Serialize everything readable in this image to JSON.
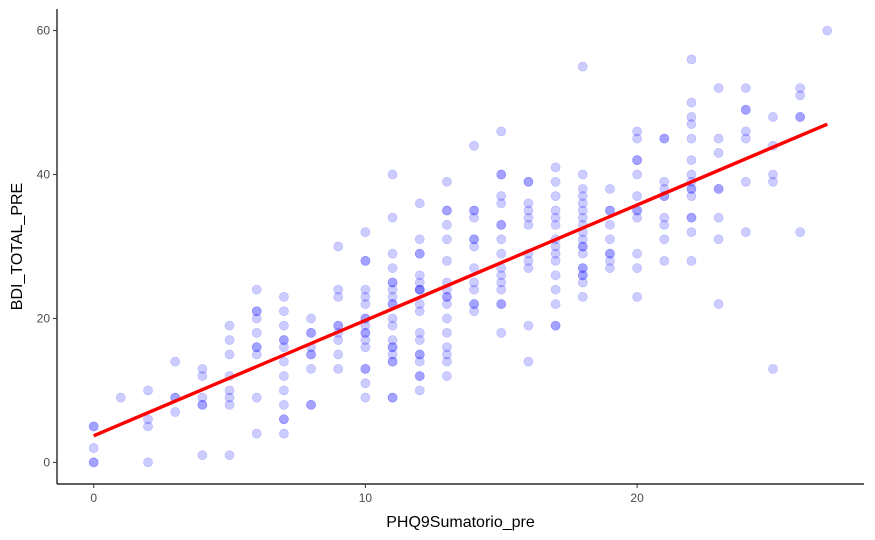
{
  "chart_data": {
    "type": "scatter",
    "title": "",
    "xlabel": "PHQ9Sumatorio_pre",
    "ylabel": "BDI_TOTAL_PRE",
    "xlim": [
      -1.35,
      28.35
    ],
    "ylim": [
      -3,
      63
    ],
    "x_ticks": [
      0,
      10,
      20
    ],
    "y_ticks": [
      0,
      20,
      40,
      60
    ],
    "grid": false,
    "legend": "none",
    "point_color": "#0000ff",
    "point_opacity": 0.2,
    "fit_line": {
      "color": "#ff0000",
      "x": [
        0,
        27
      ],
      "y": [
        3.7,
        47
      ]
    },
    "points": [
      [
        0,
        5
      ],
      [
        0,
        5
      ],
      [
        0,
        2
      ],
      [
        0,
        0
      ],
      [
        0,
        0
      ],
      [
        1,
        9
      ],
      [
        2,
        10
      ],
      [
        2,
        6
      ],
      [
        2,
        5
      ],
      [
        2,
        0
      ],
      [
        3,
        14
      ],
      [
        3,
        9
      ],
      [
        3,
        9
      ],
      [
        3,
        7
      ],
      [
        4,
        13
      ],
      [
        4,
        12
      ],
      [
        4,
        9
      ],
      [
        4,
        8
      ],
      [
        4,
        8
      ],
      [
        4,
        1
      ],
      [
        5,
        19
      ],
      [
        5,
        17
      ],
      [
        5,
        15
      ],
      [
        5,
        12
      ],
      [
        5,
        10
      ],
      [
        5,
        9
      ],
      [
        5,
        8
      ],
      [
        5,
        1
      ],
      [
        6,
        24
      ],
      [
        6,
        21
      ],
      [
        6,
        21
      ],
      [
        6,
        20
      ],
      [
        6,
        18
      ],
      [
        6,
        16
      ],
      [
        6,
        16
      ],
      [
        6,
        15
      ],
      [
        6,
        9
      ],
      [
        6,
        4
      ],
      [
        7,
        23
      ],
      [
        7,
        21
      ],
      [
        7,
        19
      ],
      [
        7,
        17
      ],
      [
        7,
        17
      ],
      [
        7,
        16
      ],
      [
        7,
        14
      ],
      [
        7,
        12
      ],
      [
        7,
        10
      ],
      [
        7,
        8
      ],
      [
        7,
        6
      ],
      [
        7,
        6
      ],
      [
        7,
        4
      ],
      [
        8,
        20
      ],
      [
        8,
        18
      ],
      [
        8,
        18
      ],
      [
        8,
        16
      ],
      [
        8,
        15
      ],
      [
        8,
        15
      ],
      [
        8,
        13
      ],
      [
        8,
        8
      ],
      [
        8,
        8
      ],
      [
        9,
        30
      ],
      [
        9,
        24
      ],
      [
        9,
        23
      ],
      [
        9,
        19
      ],
      [
        9,
        19
      ],
      [
        9,
        18
      ],
      [
        9,
        17
      ],
      [
        9,
        15
      ],
      [
        9,
        13
      ],
      [
        10,
        32
      ],
      [
        10,
        28
      ],
      [
        10,
        28
      ],
      [
        10,
        24
      ],
      [
        10,
        23
      ],
      [
        10,
        22
      ],
      [
        10,
        20
      ],
      [
        10,
        20
      ],
      [
        10,
        19
      ],
      [
        10,
        18
      ],
      [
        10,
        18
      ],
      [
        10,
        17
      ],
      [
        10,
        16
      ],
      [
        10,
        13
      ],
      [
        10,
        13
      ],
      [
        10,
        11
      ],
      [
        10,
        9
      ],
      [
        11,
        40
      ],
      [
        11,
        34
      ],
      [
        11,
        29
      ],
      [
        11,
        27
      ],
      [
        11,
        25
      ],
      [
        11,
        25
      ],
      [
        11,
        24
      ],
      [
        11,
        23
      ],
      [
        11,
        22
      ],
      [
        11,
        22
      ],
      [
        11,
        20
      ],
      [
        11,
        19
      ],
      [
        11,
        17
      ],
      [
        11,
        16
      ],
      [
        11,
        16
      ],
      [
        11,
        15
      ],
      [
        11,
        14
      ],
      [
        11,
        14
      ],
      [
        11,
        9
      ],
      [
        11,
        9
      ],
      [
        12,
        36
      ],
      [
        12,
        31
      ],
      [
        12,
        29
      ],
      [
        12,
        29
      ],
      [
        12,
        26
      ],
      [
        12,
        25
      ],
      [
        12,
        24
      ],
      [
        12,
        24
      ],
      [
        12,
        24
      ],
      [
        12,
        22
      ],
      [
        12,
        21
      ],
      [
        12,
        18
      ],
      [
        12,
        17
      ],
      [
        12,
        15
      ],
      [
        12,
        15
      ],
      [
        12,
        14
      ],
      [
        12,
        12
      ],
      [
        12,
        12
      ],
      [
        12,
        10
      ],
      [
        13,
        39
      ],
      [
        13,
        35
      ],
      [
        13,
        35
      ],
      [
        13,
        33
      ],
      [
        13,
        31
      ],
      [
        13,
        28
      ],
      [
        13,
        25
      ],
      [
        13,
        24
      ],
      [
        13,
        23
      ],
      [
        13,
        23
      ],
      [
        13,
        22
      ],
      [
        13,
        20
      ],
      [
        13,
        18
      ],
      [
        13,
        16
      ],
      [
        13,
        15
      ],
      [
        13,
        14
      ],
      [
        13,
        12
      ],
      [
        14,
        44
      ],
      [
        14,
        35
      ],
      [
        14,
        35
      ],
      [
        14,
        34
      ],
      [
        14,
        31
      ],
      [
        14,
        31
      ],
      [
        14,
        30
      ],
      [
        14,
        27
      ],
      [
        14,
        25
      ],
      [
        14,
        24
      ],
      [
        14,
        22
      ],
      [
        14,
        22
      ],
      [
        14,
        21
      ],
      [
        15,
        46
      ],
      [
        15,
        40
      ],
      [
        15,
        40
      ],
      [
        15,
        37
      ],
      [
        15,
        36
      ],
      [
        15,
        33
      ],
      [
        15,
        33
      ],
      [
        15,
        31
      ],
      [
        15,
        29
      ],
      [
        15,
        27
      ],
      [
        15,
        26
      ],
      [
        15,
        25
      ],
      [
        15,
        24
      ],
      [
        15,
        22
      ],
      [
        15,
        22
      ],
      [
        15,
        18
      ],
      [
        16,
        39
      ],
      [
        16,
        39
      ],
      [
        16,
        36
      ],
      [
        16,
        35
      ],
      [
        16,
        34
      ],
      [
        16,
        33
      ],
      [
        16,
        29
      ],
      [
        16,
        28
      ],
      [
        16,
        27
      ],
      [
        16,
        19
      ],
      [
        16,
        14
      ],
      [
        17,
        41
      ],
      [
        17,
        39
      ],
      [
        17,
        37
      ],
      [
        17,
        35
      ],
      [
        17,
        34
      ],
      [
        17,
        33
      ],
      [
        17,
        31
      ],
      [
        17,
        30
      ],
      [
        17,
        29
      ],
      [
        17,
        28
      ],
      [
        17,
        26
      ],
      [
        17,
        24
      ],
      [
        17,
        22
      ],
      [
        17,
        19
      ],
      [
        17,
        19
      ],
      [
        18,
        55
      ],
      [
        18,
        40
      ],
      [
        18,
        38
      ],
      [
        18,
        37
      ],
      [
        18,
        36
      ],
      [
        18,
        35
      ],
      [
        18,
        34
      ],
      [
        18,
        33
      ],
      [
        18,
        32
      ],
      [
        18,
        31
      ],
      [
        18,
        30
      ],
      [
        18,
        30
      ],
      [
        18,
        29
      ],
      [
        18,
        27
      ],
      [
        18,
        27
      ],
      [
        18,
        26
      ],
      [
        18,
        26
      ],
      [
        18,
        25
      ],
      [
        18,
        23
      ],
      [
        19,
        38
      ],
      [
        19,
        35
      ],
      [
        19,
        35
      ],
      [
        19,
        33
      ],
      [
        19,
        31
      ],
      [
        19,
        29
      ],
      [
        19,
        29
      ],
      [
        19,
        28
      ],
      [
        19,
        27
      ],
      [
        20,
        46
      ],
      [
        20,
        45
      ],
      [
        20,
        42
      ],
      [
        20,
        42
      ],
      [
        20,
        40
      ],
      [
        20,
        37
      ],
      [
        20,
        35
      ],
      [
        20,
        35
      ],
      [
        20,
        34
      ],
      [
        20,
        29
      ],
      [
        20,
        27
      ],
      [
        20,
        23
      ],
      [
        21,
        45
      ],
      [
        21,
        45
      ],
      [
        21,
        39
      ],
      [
        21,
        38
      ],
      [
        21,
        37
      ],
      [
        21,
        37
      ],
      [
        21,
        34
      ],
      [
        21,
        33
      ],
      [
        21,
        31
      ],
      [
        21,
        28
      ],
      [
        22,
        56
      ],
      [
        22,
        50
      ],
      [
        22,
        48
      ],
      [
        22,
        47
      ],
      [
        22,
        45
      ],
      [
        22,
        42
      ],
      [
        22,
        40
      ],
      [
        22,
        39
      ],
      [
        22,
        38
      ],
      [
        22,
        38
      ],
      [
        22,
        37
      ],
      [
        22,
        34
      ],
      [
        22,
        34
      ],
      [
        22,
        32
      ],
      [
        22,
        28
      ],
      [
        23,
        52
      ],
      [
        23,
        45
      ],
      [
        23,
        43
      ],
      [
        23,
        38
      ],
      [
        23,
        38
      ],
      [
        23,
        34
      ],
      [
        23,
        31
      ],
      [
        23,
        22
      ],
      [
        24,
        52
      ],
      [
        24,
        49
      ],
      [
        24,
        49
      ],
      [
        24,
        46
      ],
      [
        24,
        45
      ],
      [
        24,
        39
      ],
      [
        24,
        32
      ],
      [
        25,
        48
      ],
      [
        25,
        44
      ],
      [
        25,
        40
      ],
      [
        25,
        39
      ],
      [
        25,
        13
      ],
      [
        26,
        52
      ],
      [
        26,
        51
      ],
      [
        26,
        48
      ],
      [
        26,
        48
      ],
      [
        26,
        32
      ],
      [
        27,
        60
      ]
    ]
  }
}
